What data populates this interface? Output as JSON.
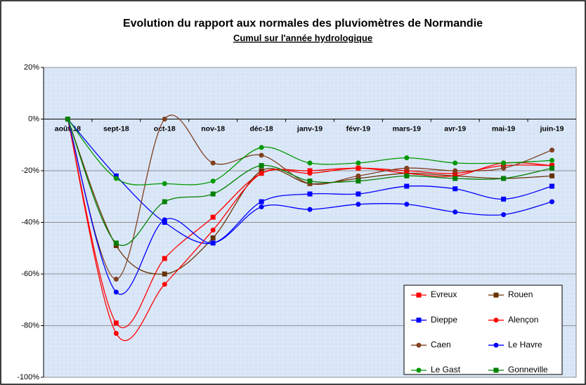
{
  "chart_data": {
    "type": "line",
    "title": "Evolution du rapport aux normales des pluviomètres de Normandie",
    "subtitle": "Cumul sur l'année hydrologique",
    "categories": [
      "août-18",
      "sept-18",
      "oct-18",
      "nov-18",
      "déc-18",
      "janv-19",
      "févr-19",
      "mars-19",
      "avr-19",
      "mai-19",
      "juin-19"
    ],
    "series": [
      {
        "name": "Evreux",
        "color": "#ff0000",
        "marker": "square",
        "values": [
          0,
          -79,
          -54,
          -38,
          -21,
          -20,
          -19,
          -20,
          -21,
          -18,
          -18
        ]
      },
      {
        "name": "Rouen",
        "color": "#663300",
        "marker": "square",
        "values": [
          0,
          -49,
          -60,
          -46,
          -20,
          -25,
          -23,
          -21,
          -22,
          -23,
          -22
        ]
      },
      {
        "name": "Dieppe",
        "color": "#0000ff",
        "marker": "square",
        "values": [
          0,
          -22,
          -40,
          -48,
          -32,
          -29,
          -29,
          -26,
          -27,
          -31,
          -26
        ]
      },
      {
        "name": "Alençon",
        "color": "#ff0000",
        "marker": "circle",
        "values": [
          0,
          -83,
          -64,
          -43,
          -21,
          -21,
          -19,
          -21,
          -22,
          -17,
          -18
        ]
      },
      {
        "name": "Caen",
        "color": "#804020",
        "marker": "circle",
        "values": [
          0,
          -62,
          0,
          -17,
          -14,
          -25,
          -22,
          -19,
          -20,
          -19,
          -12
        ]
      },
      {
        "name": "Le Havre",
        "color": "#0000ff",
        "marker": "circle",
        "values": [
          0,
          -67,
          -39,
          -48,
          -34,
          -35,
          -33,
          -33,
          -36,
          -37,
          -32
        ]
      },
      {
        "name": "Le Gast",
        "color": "#009900",
        "marker": "circle",
        "values": [
          0,
          -23,
          -25,
          -24,
          -11,
          -17,
          -17,
          -15,
          -17,
          -17,
          -16
        ]
      },
      {
        "name": "Gonneville",
        "color": "#008000",
        "marker": "square",
        "values": [
          0,
          -48,
          -32,
          -29,
          -18,
          -24,
          -24,
          -22,
          -23,
          -23,
          -19
        ]
      }
    ],
    "ylim": [
      -100,
      20
    ],
    "yticks": [
      {
        "value": -100,
        "label": "-100%"
      },
      {
        "value": -80,
        "label": "-80%"
      },
      {
        "value": -60,
        "label": "-60%"
      },
      {
        "value": -40,
        "label": "-40%"
      },
      {
        "value": -20,
        "label": "-20%"
      },
      {
        "value": 0,
        "label": "0%"
      },
      {
        "value": 20,
        "label": "20%"
      }
    ],
    "grid": true,
    "smooth": true,
    "legend": "lower right"
  }
}
